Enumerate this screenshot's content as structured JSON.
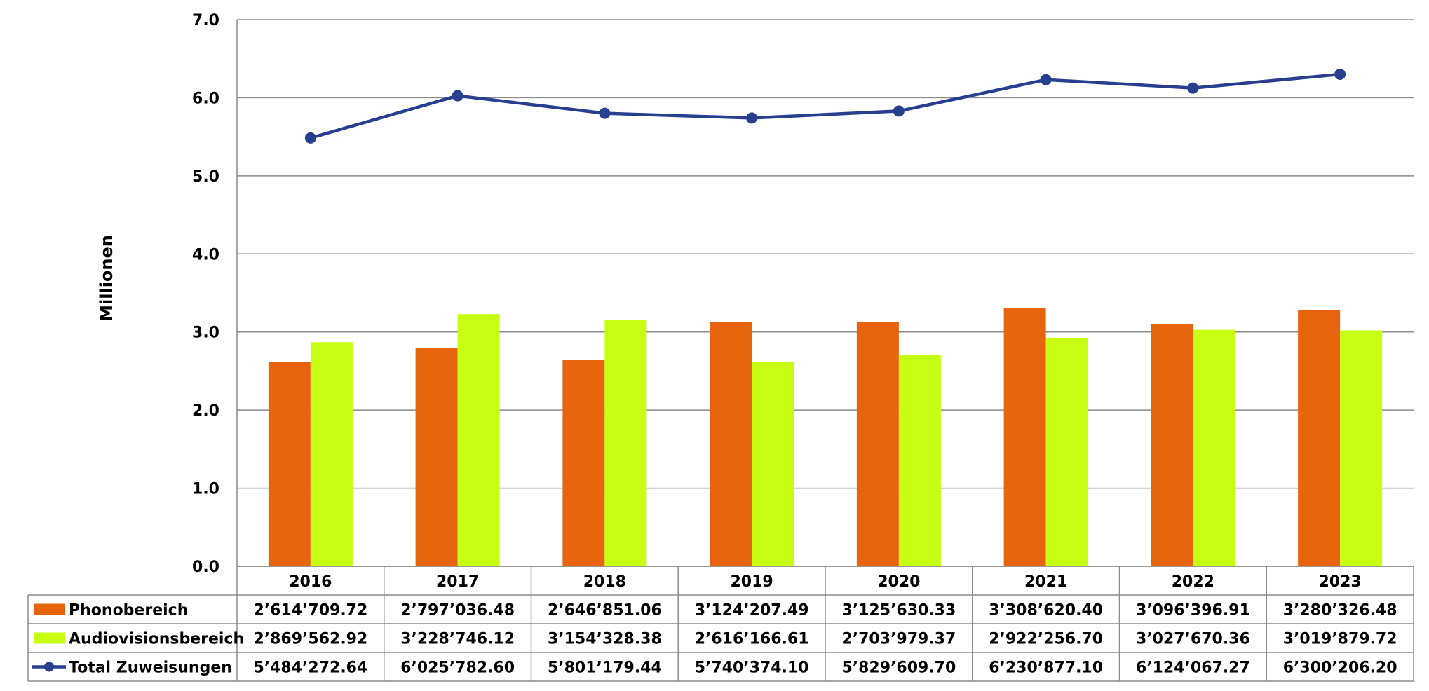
{
  "chart_data": {
    "type": "bar",
    "ylabel": "Millionen",
    "ylim": [
      0,
      7
    ],
    "yticks": [
      "0.0",
      "1.0",
      "2.0",
      "3.0",
      "4.0",
      "5.0",
      "6.0",
      "7.0"
    ],
    "grid": true,
    "legend": "table-left",
    "categories": [
      "2016",
      "2017",
      "2018",
      "2019",
      "2020",
      "2021",
      "2022",
      "2023"
    ],
    "series": [
      {
        "name": "Phonobereich",
        "kind": "bar",
        "color": "#E8640C",
        "values": [
          2.61470972,
          2.79703648,
          2.64685106,
          3.12420749,
          3.12563033,
          3.3086204,
          3.09639691,
          3.28032648
        ],
        "labels": [
          "2’614’709.72",
          "2’797’036.48",
          "2’646’851.06",
          "3’124’207.49",
          "3’125’630.33",
          "3’308’620.40",
          "3’096’396.91",
          "3’280’326.48"
        ]
      },
      {
        "name": "Audiovisionsbereich",
        "kind": "bar",
        "color": "#C6FF11",
        "values": [
          2.86956292,
          3.22874612,
          3.15432838,
          2.61616661,
          2.70397937,
          2.9222567,
          3.02767036,
          3.01987972
        ],
        "labels": [
          "2’869’562.92",
          "3’228’746.12",
          "3’154’328.38",
          "2’616’166.61",
          "2’703’979.37",
          "2’922’256.70",
          "3’027’670.36",
          "3’019’879.72"
        ]
      },
      {
        "name": "Total Zuweisungen",
        "kind": "line",
        "color": "#263F8F",
        "values": [
          5.48427264,
          6.0257826,
          5.80117944,
          5.7403741,
          5.8296097,
          6.2308771,
          6.12406727,
          6.3002062
        ],
        "labels": [
          "5’484’272.64",
          "6’025’782.60",
          "5’801’179.44",
          "5’740’374.10",
          "5’829’609.70",
          "6’230’877.10",
          "6’124’067.27",
          "6’300’206.20"
        ]
      }
    ]
  }
}
